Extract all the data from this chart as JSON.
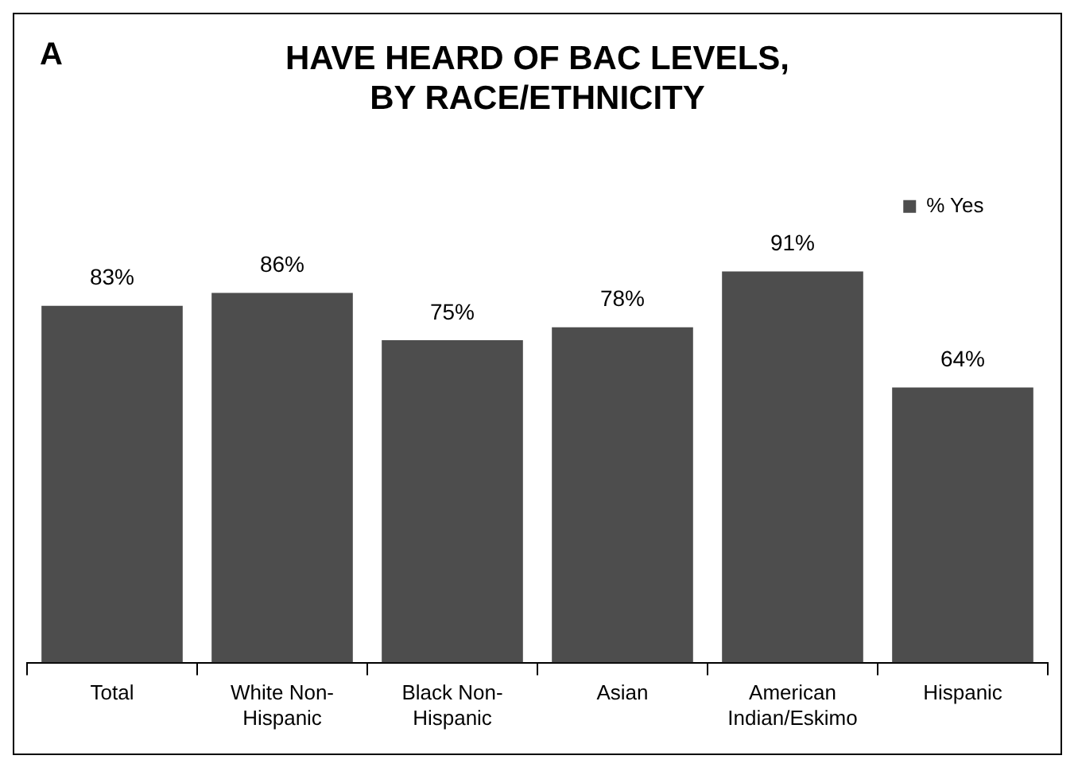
{
  "chart_data": {
    "type": "bar",
    "title": "HAVE HEARD OF BAC LEVELS, BY RACE/ETHNICITY",
    "annotations": [
      "A"
    ],
    "categories": [
      "Total",
      "White Non-Hispanic",
      "Black Non-Hispanic",
      "Asian",
      "American Indian/Eskimo",
      "Hispanic"
    ],
    "series": [
      {
        "name": "% Yes",
        "color": "#4d4d4d",
        "values": [
          83,
          86,
          75,
          78,
          91,
          64
        ],
        "value_labels": [
          "83%",
          "86%",
          "75%",
          "78%",
          "91%",
          "64%"
        ]
      }
    ],
    "legend": "top right",
    "grid": false
  }
}
